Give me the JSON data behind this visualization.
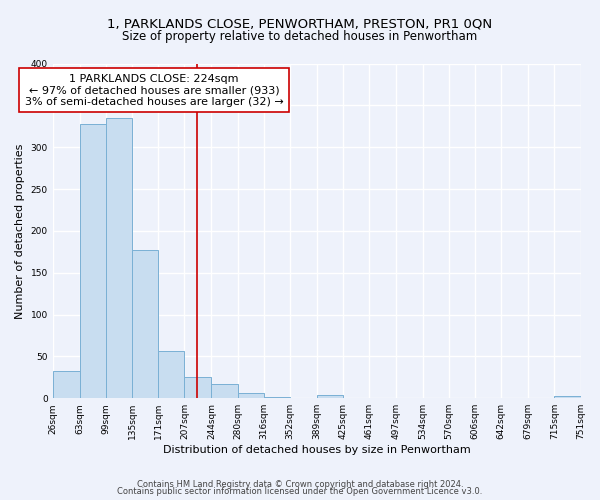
{
  "title": "1, PARKLANDS CLOSE, PENWORTHAM, PRESTON, PR1 0QN",
  "subtitle": "Size of property relative to detached houses in Penwortham",
  "xlabel": "Distribution of detached houses by size in Penwortham",
  "ylabel": "Number of detached properties",
  "bin_edges": [
    26,
    63,
    99,
    135,
    171,
    207,
    244,
    280,
    316,
    352,
    389,
    425,
    461,
    497,
    534,
    570,
    606,
    642,
    679,
    715,
    751
  ],
  "bin_labels": [
    "26sqm",
    "63sqm",
    "99sqm",
    "135sqm",
    "171sqm",
    "207sqm",
    "244sqm",
    "280sqm",
    "316sqm",
    "352sqm",
    "389sqm",
    "425sqm",
    "461sqm",
    "497sqm",
    "534sqm",
    "570sqm",
    "606sqm",
    "642sqm",
    "679sqm",
    "715sqm",
    "751sqm"
  ],
  "counts": [
    33,
    328,
    335,
    177,
    56,
    25,
    17,
    6,
    1,
    0,
    4,
    0,
    0,
    0,
    0,
    0,
    0,
    0,
    0,
    3
  ],
  "bar_color": "#c8ddf0",
  "bar_edge_color": "#7ab0d4",
  "reference_line_x": 224,
  "reference_line_color": "#cc0000",
  "annotation_line1": "1 PARKLANDS CLOSE: 224sqm",
  "annotation_line2": "← 97% of detached houses are smaller (933)",
  "annotation_line3": "3% of semi-detached houses are larger (32) →",
  "annotation_box_color": "#ffffff",
  "annotation_box_edge_color": "#cc0000",
  "ylim": [
    0,
    400
  ],
  "yticks": [
    0,
    50,
    100,
    150,
    200,
    250,
    300,
    350,
    400
  ],
  "footer_line1": "Contains HM Land Registry data © Crown copyright and database right 2024.",
  "footer_line2": "Contains public sector information licensed under the Open Government Licence v3.0.",
  "background_color": "#eef2fb",
  "grid_color": "#ffffff",
  "title_fontsize": 9.5,
  "subtitle_fontsize": 8.5,
  "axis_label_fontsize": 8,
  "tick_fontsize": 6.5,
  "annotation_fontsize": 8,
  "footer_fontsize": 6
}
